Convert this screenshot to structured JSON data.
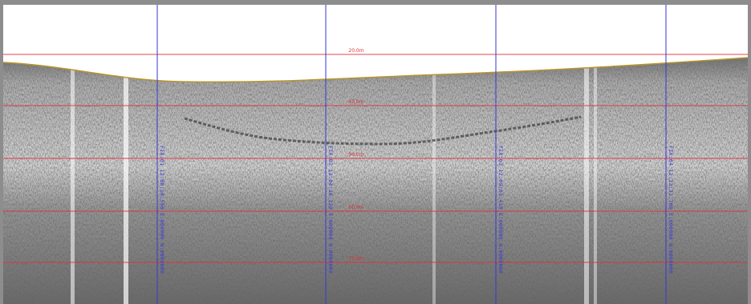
{
  "image": {
    "kind": "sub-bottom sonar profile",
    "background": "#ffffff",
    "frame_color": "#8d8d8d"
  },
  "depth_lines": {
    "color": "#e0303a",
    "labels": [
      "20.0m",
      "40.0m",
      "50.0m",
      "60.0m",
      "70.0m"
    ]
  },
  "fix_lines": {
    "color": "#3a3ad8",
    "labels": [
      "FIX:01 12:00:10.550 E:000000 N:0000000",
      "FIX:02 12:04:36.120 E:000000 N:0000000",
      "FIX:03 12:09:03.410 E:000000 N:0000000",
      "FIX:04 12:13:31.700 E:000000 N:0000000"
    ]
  },
  "seabed": {
    "color": "#b8962a"
  }
}
